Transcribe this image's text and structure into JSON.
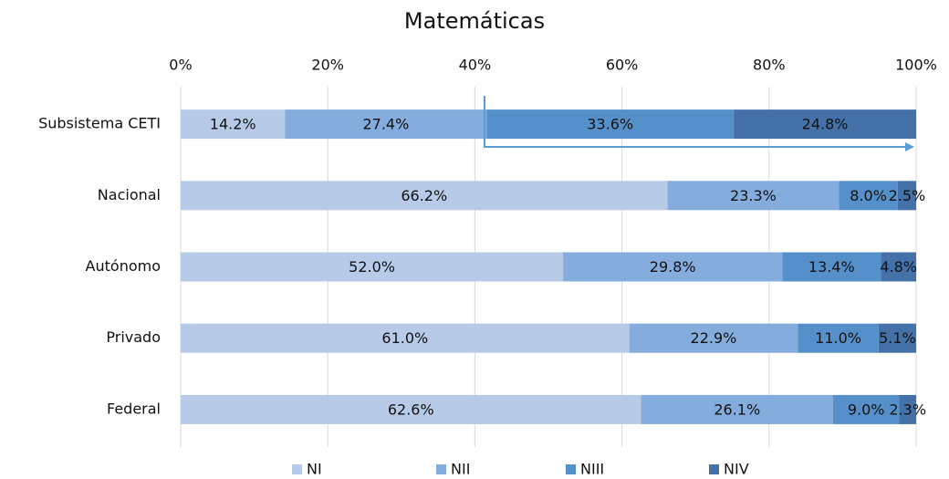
{
  "chart_data": {
    "type": "stacked-barh",
    "title": "Matemáticas",
    "categories": [
      "Subsistema CETI",
      "Nacional",
      "Autónomo",
      "Privado",
      "Federal"
    ],
    "series": [
      {
        "name": "NI",
        "color": "#b7cbe8",
        "values": [
          14.2,
          66.2,
          52.0,
          61.0,
          62.6
        ],
        "value_labels": [
          "14.2%",
          "66.2%",
          "52.0%",
          "61.0%",
          "62.6%"
        ]
      },
      {
        "name": "NII",
        "color": "#84acdc",
        "values": [
          27.4,
          23.3,
          29.8,
          22.9,
          26.1
        ],
        "value_labels": [
          "27.4%",
          "23.3%",
          "29.8%",
          "22.9%",
          "26.1%"
        ]
      },
      {
        "name": "NIII",
        "color": "#5590cb",
        "values": [
          33.6,
          8.0,
          13.4,
          11.0,
          9.0
        ],
        "value_labels": [
          "33.6%",
          "8.0%",
          "13.4%",
          "11.0%",
          "9.0%"
        ]
      },
      {
        "name": "NIV",
        "color": "#4472a8",
        "values": [
          24.8,
          2.5,
          4.8,
          5.1,
          2.3
        ],
        "value_labels": [
          "24.8%",
          "2.5%",
          "4.8%",
          "5.1%",
          "2.3%"
        ]
      }
    ],
    "xlim": [
      0,
      100
    ],
    "xticks": [
      {
        "value": 0,
        "label": "0%"
      },
      {
        "value": 20,
        "label": "20%"
      },
      {
        "value": 40,
        "label": "40%"
      },
      {
        "value": 60,
        "label": "60%"
      },
      {
        "value": 80,
        "label": "80%"
      },
      {
        "value": 100,
        "label": "100%"
      }
    ],
    "grid": true,
    "legend": "bottom"
  }
}
